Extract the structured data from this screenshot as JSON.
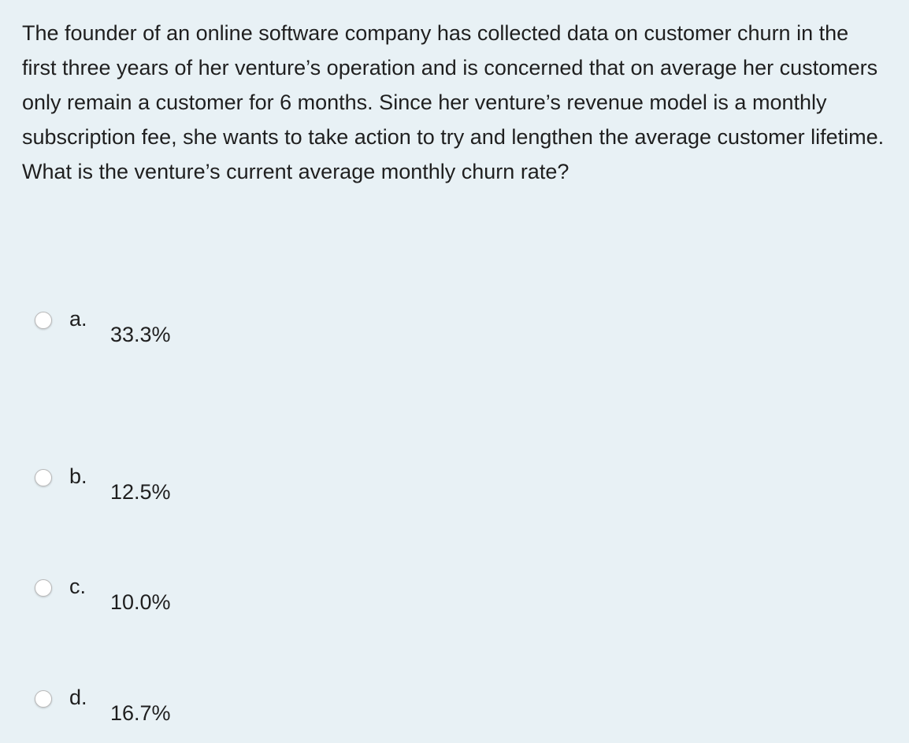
{
  "question": {
    "text": "The founder of an online software company has collected data on customer churn in the first three years of her venture’s operation and is concerned that on average her customers only remain a customer for 6 months.  Since her venture’s revenue model is a monthly subscription fee, she wants to take action to try and lengthen the average customer lifetime.  What is the venture’s current average monthly churn rate?"
  },
  "options": [
    {
      "letter": "a.",
      "value": "33.3%"
    },
    {
      "letter": "b.",
      "value": "12.5%"
    },
    {
      "letter": "c.",
      "value": "10.0%"
    },
    {
      "letter": "d.",
      "value": "16.7%"
    }
  ]
}
